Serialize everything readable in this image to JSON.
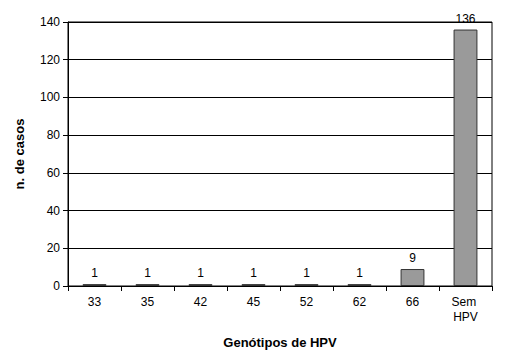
{
  "chart_data": {
    "type": "bar",
    "xlabel": "Genótipos de HPV",
    "ylabel": "n. de casos",
    "categories": [
      "33",
      "35",
      "42",
      "45",
      "52",
      "62",
      "66",
      "Sem HPV"
    ],
    "values": [
      1,
      1,
      1,
      1,
      1,
      1,
      9,
      136
    ],
    "color": "#9a9a9a",
    "ylim": [
      0,
      140
    ],
    "yticks": [
      0,
      20,
      40,
      60,
      80,
      100,
      120,
      140
    ],
    "grid": true,
    "data_labels": true
  }
}
